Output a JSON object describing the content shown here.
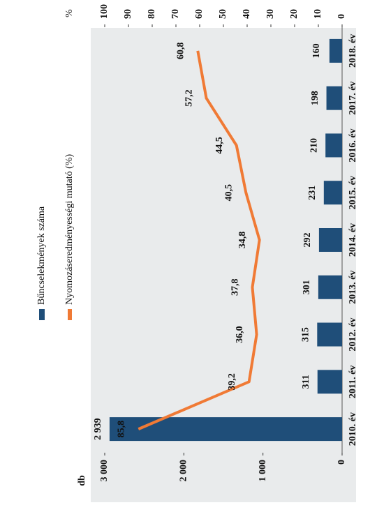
{
  "chart_data": {
    "type": "combo",
    "y_label": "db",
    "y2_label": "%",
    "categories": [
      "2010. év",
      "2011. év",
      "2012. év",
      "2013. év",
      "2014. év",
      "2015. év",
      "2016. év",
      "2017. év",
      "2018. év"
    ],
    "series": [
      {
        "name": "Bűncselekmények száma",
        "type": "bar",
        "color": "#1f4e79",
        "axis": "y",
        "values": [
          2939,
          311,
          315,
          301,
          292,
          231,
          210,
          198,
          160
        ],
        "value_labels": [
          "2 939",
          "311",
          "315",
          "301",
          "292",
          "231",
          "210",
          "198",
          "160"
        ]
      },
      {
        "name": "Nyomozáseredményességi mutató (%)",
        "type": "line",
        "color": "#f07a35",
        "axis": "y2",
        "values": [
          85.8,
          39.2,
          36.0,
          37.8,
          34.8,
          40.5,
          44.5,
          57.2,
          60.8
        ],
        "value_labels": [
          "85,8",
          "39,2",
          "36,0",
          "37,8",
          "34,8",
          "40,5",
          "44,5",
          "57,2",
          "60,8"
        ]
      }
    ],
    "ylim": [
      0,
      3000
    ],
    "yticks": [
      0,
      {
        "value": 1000,
        "label": "1 000"
      },
      {
        "value": 2000,
        "label": "2 000"
      },
      {
        "value": 3000,
        "label": "3 000"
      }
    ],
    "y2lim": [
      0,
      100
    ],
    "y2ticks": [
      0,
      10,
      20,
      30,
      40,
      50,
      60,
      70,
      80,
      90,
      100
    ]
  }
}
